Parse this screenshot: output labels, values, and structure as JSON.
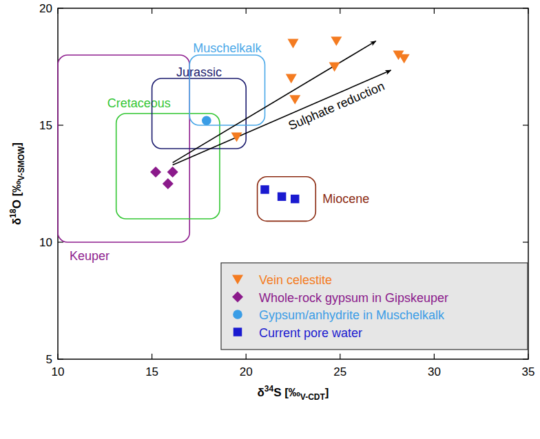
{
  "chart_data": {
    "type": "scatter",
    "xlabel": {
      "pre": "δ",
      "sup": "34",
      "main": "S [‰",
      "sub": "V-CDT",
      "post": "]"
    },
    "ylabel": {
      "pre": "δ",
      "sup": "18",
      "main": "O [‰",
      "sub": "V-SMOW",
      "post": "]"
    },
    "xlim": [
      10,
      35
    ],
    "ylim": [
      5,
      20
    ],
    "xticks": [
      10,
      15,
      20,
      25,
      30,
      35
    ],
    "yticks": [
      5,
      10,
      15,
      20
    ],
    "legend": "bottom-right",
    "series": [
      {
        "name": "Vein celestite",
        "color": "#f47b20",
        "marker": "triangle-down",
        "x": [
          22.5,
          24.8,
          22.4,
          24.7,
          22.6,
          19.5,
          28.1,
          28.4
        ],
        "values": [
          18.5,
          18.6,
          17.0,
          17.5,
          16.1,
          14.5,
          18.0,
          17.85
        ]
      },
      {
        "name": "Whole-rock gypsum in Gipskeuper",
        "color": "#8b1a8b",
        "marker": "diamond",
        "x": [
          15.2,
          16.1,
          15.85
        ],
        "values": [
          13.0,
          13.0,
          12.5
        ]
      },
      {
        "name": "Gypsum/anhydrite in Muschelkalk",
        "color": "#3a9de6",
        "marker": "circle",
        "x": [
          17.9
        ],
        "values": [
          15.2
        ]
      },
      {
        "name": "Current pore water",
        "color": "#1a1ad0",
        "marker": "square",
        "x": [
          21.0,
          21.9,
          22.6
        ],
        "values": [
          12.25,
          11.95,
          11.85
        ]
      }
    ],
    "regions": [
      {
        "name": "Keuper",
        "color": "#8e1e8e",
        "x": [
          10,
          17
        ],
        "y": [
          10,
          18
        ]
      },
      {
        "name": "Cretaceous",
        "color": "#33c633",
        "x": [
          13.1,
          18.6
        ],
        "y": [
          11.0,
          15.5
        ]
      },
      {
        "name": "Jurassic",
        "color": "#1b1b6e",
        "x": [
          15.0,
          20.0
        ],
        "y": [
          14.0,
          17.0
        ]
      },
      {
        "name": "Muschelkalk",
        "color": "#4aa8e8",
        "x": [
          17.0,
          21.0
        ],
        "y": [
          15.0,
          18.0
        ]
      },
      {
        "name": "Miocene",
        "color": "#8b2a10",
        "x": [
          20.6,
          23.7
        ],
        "y": [
          10.9,
          12.8
        ]
      }
    ],
    "arrows": [
      {
        "x": [
          16.1,
          26.9
        ],
        "y": [
          13.4,
          18.6
        ]
      },
      {
        "x": [
          16.1,
          27.7
        ],
        "y": [
          13.3,
          17.35
        ]
      }
    ],
    "annotations": [
      {
        "text": "Sulphate reduction"
      }
    ]
  }
}
